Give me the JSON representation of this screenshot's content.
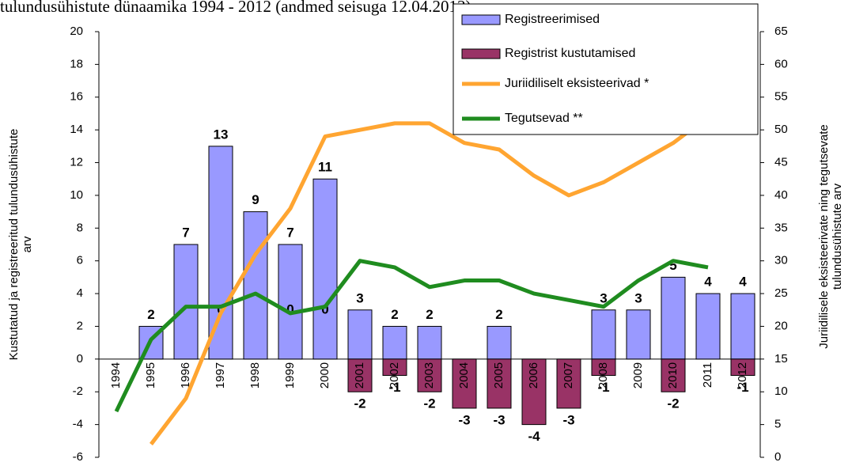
{
  "chart_data": {
    "type": "bar-line",
    "title": "tulundusühistute dünaamika 1994 - 2012 (andmed seisuga 12.04.2013)",
    "y_label": [
      "Kustutatud ja registreeritud tulundusühistute",
      "arv"
    ],
    "y2_label": [
      "Juriidilisele  eksisteerivate ning tegutsevate",
      "tulundusühistute arv"
    ],
    "categories": [
      "1994",
      "1995",
      "1996",
      "1997",
      "1998",
      "1999",
      "2000",
      "2001",
      "2002",
      "2003",
      "2004",
      "2005",
      "2006",
      "2007",
      "2008",
      "2009",
      "2010",
      "2011",
      "2012"
    ],
    "ylim": [
      -6,
      20
    ],
    "yticks": [
      -6,
      -4,
      -2,
      0,
      2,
      4,
      6,
      8,
      10,
      12,
      14,
      16,
      18,
      20
    ],
    "y2lim": [
      0,
      65
    ],
    "y2ticks": [
      0,
      5,
      10,
      15,
      20,
      25,
      30,
      35,
      40,
      45,
      50,
      55,
      60,
      65
    ],
    "series": [
      {
        "name": "Registreerimised",
        "kind": "bar",
        "color": "#9999ff",
        "values": [
          null,
          2,
          7,
          13,
          9,
          7,
          11,
          3,
          2,
          2,
          null,
          2,
          null,
          null,
          3,
          3,
          5,
          4,
          4
        ]
      },
      {
        "name": "Registrist kustutamised",
        "kind": "bar",
        "color": "#993366",
        "values": [
          null,
          null,
          null,
          0,
          null,
          0,
          0,
          -2,
          -1,
          -2,
          -3,
          -3,
          -4,
          -3,
          -1,
          null,
          -2,
          null,
          -1
        ]
      },
      {
        "name": "Juriidiliselt eksisteerivad *",
        "kind": "line",
        "axis": "y2",
        "color": "#ffa531",
        "values": [
          null,
          2,
          9,
          22,
          31,
          38,
          49,
          50,
          51,
          51,
          48,
          47,
          43,
          40,
          42,
          45,
          48,
          52,
          55
        ]
      },
      {
        "name": "Tegutsevad **",
        "kind": "line",
        "axis": "y2",
        "color": "#1f8c1f",
        "values": [
          7,
          18,
          23,
          23,
          25,
          22,
          23,
          30,
          29,
          26,
          27,
          27,
          25,
          24,
          23,
          27,
          30,
          29,
          null
        ]
      }
    ]
  }
}
